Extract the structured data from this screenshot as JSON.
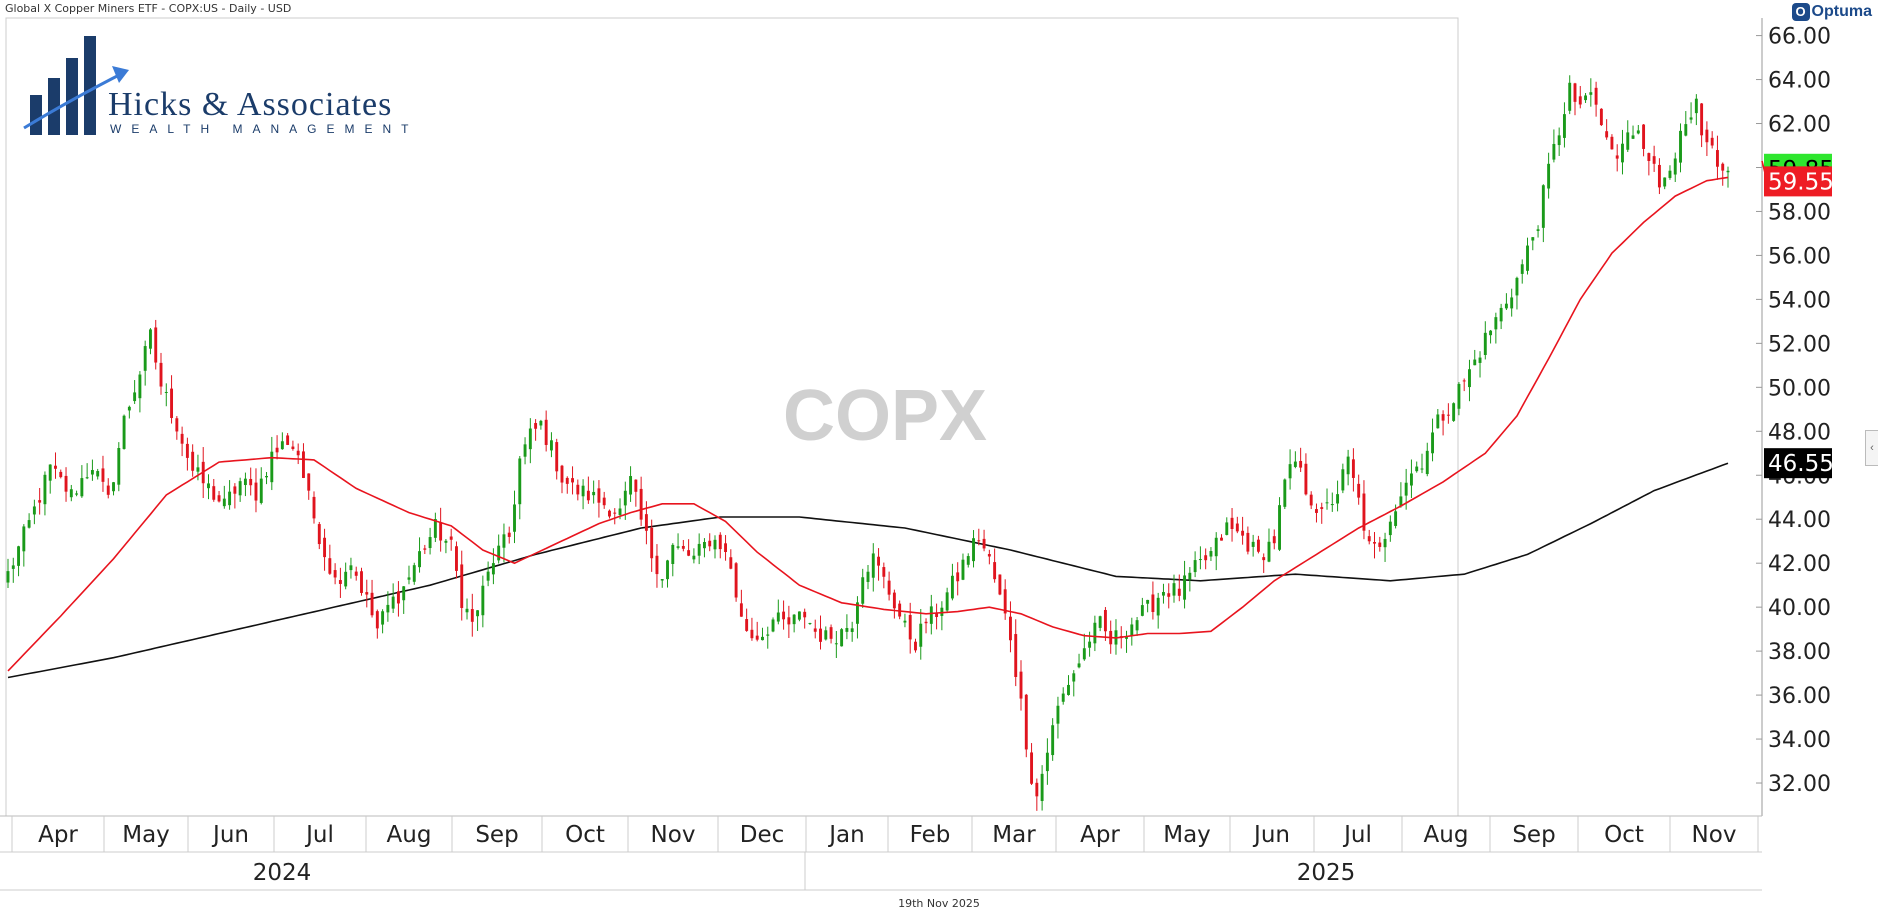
{
  "header": {
    "title": "Global X Copper Miners ETF - COPX:US - Daily - USD",
    "provider": "Optuma"
  },
  "logo": {
    "name": "Hicks & Associates",
    "tagline": "WEALTH MANAGEMENT"
  },
  "footer": {
    "date": "19th Nov 2025"
  },
  "colors": {
    "up": "#1a9a1a",
    "down": "#e0141e",
    "ma_short": "#e8141e",
    "ma_long": "#111111",
    "watermark": "#d0d0d0",
    "price_up_badge": "#2ee62e",
    "price_down_badge": "#ee1c24",
    "long_badge": "#000000",
    "logo_navy": "#1b3c6a"
  },
  "chart_data": {
    "type": "candlestick",
    "symbol": "COPX",
    "watermark": "COPX",
    "ylim": [
      30.5,
      66.8
    ],
    "yticks": [
      "66.00",
      "64.00",
      "62.00",
      "60.00",
      "58.00",
      "56.00",
      "54.00",
      "52.00",
      "50.00",
      "48.00",
      "46.00",
      "44.00",
      "42.00",
      "40.00",
      "38.00",
      "36.00",
      "34.00",
      "32.00"
    ],
    "months": [
      "Apr",
      "May",
      "Jun",
      "Jul",
      "Aug",
      "Sep",
      "Oct",
      "Nov",
      "Dec",
      "Jan",
      "Feb",
      "Mar",
      "Apr",
      "May",
      "Jun",
      "Jul",
      "Aug",
      "Sep",
      "Oct",
      "Nov"
    ],
    "years": [
      "2024",
      "2025"
    ],
    "price_labels": [
      {
        "text": "59.85",
        "value": 59.85,
        "color": "#2ee62e",
        "text_color": "#000000"
      },
      {
        "text": "59.55",
        "value": 59.55,
        "color": "#ee1c24",
        "text_color": "#ffffff"
      },
      {
        "text": "46.55",
        "value": 46.55,
        "color": "#000000",
        "text_color": "#ffffff"
      }
    ],
    "close_anchors": [
      [
        0,
        41.5
      ],
      [
        4,
        43.8
      ],
      [
        8,
        46.3
      ],
      [
        12,
        45.1
      ],
      [
        16,
        46.5
      ],
      [
        19,
        44.8
      ],
      [
        22,
        48.5
      ],
      [
        25,
        50.7
      ],
      [
        27,
        52.3
      ],
      [
        29,
        50.1
      ],
      [
        32,
        48.3
      ],
      [
        35,
        46.2
      ],
      [
        38,
        45.4
      ],
      [
        41,
        44.6
      ],
      [
        44,
        45.7
      ],
      [
        47,
        45.2
      ],
      [
        50,
        46.9
      ],
      [
        53,
        47.6
      ],
      [
        55,
        47.0
      ],
      [
        57,
        44.9
      ],
      [
        60,
        42.5
      ],
      [
        62,
        41.2
      ],
      [
        65,
        42.1
      ],
      [
        68,
        40.3
      ],
      [
        70,
        39.0
      ],
      [
        72,
        40.0
      ],
      [
        75,
        40.9
      ],
      [
        78,
        42.4
      ],
      [
        81,
        43.6
      ],
      [
        84,
        42.7
      ],
      [
        86,
        40.4
      ],
      [
        88,
        39.2
      ],
      [
        90,
        40.7
      ],
      [
        92,
        42.2
      ],
      [
        95,
        43.2
      ],
      [
        97,
        46.7
      ],
      [
        99,
        47.8
      ],
      [
        101,
        48.3
      ],
      [
        103,
        47.2
      ],
      [
        105,
        45.9
      ],
      [
        107,
        45.4
      ],
      [
        110,
        45.1
      ],
      [
        113,
        44.7
      ],
      [
        116,
        44.3
      ],
      [
        118,
        45.7
      ],
      [
        120,
        43.9
      ],
      [
        122,
        42.4
      ],
      [
        124,
        41.5
      ],
      [
        126,
        42.7
      ],
      [
        128,
        42.5
      ],
      [
        130,
        42.2
      ],
      [
        133,
        43.1
      ],
      [
        135,
        42.9
      ],
      [
        137,
        41.8
      ],
      [
        139,
        39.4
      ],
      [
        141,
        38.7
      ],
      [
        143,
        38.8
      ],
      [
        145,
        39.4
      ],
      [
        148,
        39.2
      ],
      [
        151,
        39.7
      ],
      [
        153,
        38.9
      ],
      [
        155,
        38.6
      ],
      [
        158,
        38.9
      ],
      [
        160,
        39.4
      ],
      [
        162,
        41.7
      ],
      [
        164,
        42.2
      ],
      [
        166,
        41.2
      ],
      [
        168,
        40.2
      ],
      [
        170,
        39.0
      ],
      [
        172,
        38.4
      ],
      [
        174,
        39.4
      ],
      [
        176,
        39.8
      ],
      [
        178,
        40.6
      ],
      [
        180,
        41.4
      ],
      [
        182,
        42.5
      ],
      [
        184,
        43.2
      ],
      [
        186,
        42.1
      ],
      [
        188,
        40.4
      ],
      [
        190,
        38.7
      ],
      [
        192,
        35.6
      ],
      [
        194,
        32.3
      ],
      [
        195,
        31.4
      ],
      [
        197,
        33.5
      ],
      [
        199,
        35.4
      ],
      [
        201,
        36.6
      ],
      [
        203,
        37.5
      ],
      [
        205,
        38.6
      ],
      [
        207,
        39.2
      ],
      [
        209,
        38.4
      ],
      [
        211,
        38.8
      ],
      [
        213,
        39.3
      ],
      [
        216,
        39.9
      ],
      [
        219,
        40.8
      ],
      [
        222,
        40.7
      ],
      [
        225,
        41.7
      ],
      [
        228,
        42.4
      ],
      [
        231,
        43.6
      ],
      [
        234,
        43.2
      ],
      [
        237,
        42.3
      ],
      [
        240,
        43.1
      ],
      [
        242,
        45.6
      ],
      [
        244,
        46.6
      ],
      [
        246,
        45.4
      ],
      [
        249,
        44.1
      ],
      [
        252,
        45.3
      ],
      [
        254,
        46.6
      ],
      [
        256,
        44.8
      ],
      [
        258,
        42.7
      ],
      [
        260,
        42.5
      ],
      [
        262,
        44.2
      ],
      [
        265,
        45.8
      ],
      [
        268,
        46.7
      ],
      [
        271,
        48.4
      ],
      [
        274,
        49.5
      ],
      [
        277,
        50.7
      ],
      [
        280,
        52.2
      ],
      [
        283,
        53.5
      ],
      [
        286,
        54.9
      ],
      [
        288,
        56.2
      ],
      [
        290,
        57.6
      ],
      [
        292,
        59.9
      ],
      [
        294,
        61.7
      ],
      [
        296,
        63.7
      ],
      [
        297,
        62.6
      ],
      [
        299,
        63.3
      ],
      [
        301,
        62.7
      ],
      [
        303,
        61.2
      ],
      [
        305,
        60.4
      ],
      [
        307,
        61.4
      ],
      [
        309,
        61.9
      ],
      [
        311,
        60.6
      ],
      [
        313,
        59.1
      ],
      [
        315,
        60.3
      ],
      [
        318,
        61.7
      ],
      [
        320,
        62.7
      ],
      [
        321,
        61.2
      ],
      [
        323,
        60.7
      ],
      [
        324,
        59.6
      ],
      [
        326,
        59.85
      ]
    ],
    "ma_short": {
      "name": "",
      "points": [
        [
          0,
          37.1
        ],
        [
          10,
          39.6
        ],
        [
          20,
          42.2
        ],
        [
          30,
          45.1
        ],
        [
          40,
          46.6
        ],
        [
          50,
          46.8
        ],
        [
          58,
          46.7
        ],
        [
          66,
          45.4
        ],
        [
          76,
          44.3
        ],
        [
          84,
          43.7
        ],
        [
          90,
          42.6
        ],
        [
          96,
          42.0
        ],
        [
          104,
          42.9
        ],
        [
          112,
          43.8
        ],
        [
          118,
          44.3
        ],
        [
          124,
          44.7
        ],
        [
          130,
          44.7
        ],
        [
          136,
          43.9
        ],
        [
          142,
          42.5
        ],
        [
          150,
          41.0
        ],
        [
          158,
          40.2
        ],
        [
          166,
          39.9
        ],
        [
          174,
          39.7
        ],
        [
          180,
          39.8
        ],
        [
          186,
          40.0
        ],
        [
          192,
          39.7
        ],
        [
          198,
          39.1
        ],
        [
          204,
          38.7
        ],
        [
          210,
          38.6
        ],
        [
          216,
          38.8
        ],
        [
          222,
          38.8
        ],
        [
          228,
          38.9
        ],
        [
          234,
          40.0
        ],
        [
          240,
          41.2
        ],
        [
          248,
          42.4
        ],
        [
          256,
          43.6
        ],
        [
          264,
          44.6
        ],
        [
          272,
          45.7
        ],
        [
          280,
          47.0
        ],
        [
          286,
          48.7
        ],
        [
          292,
          51.3
        ],
        [
          298,
          54.0
        ],
        [
          304,
          56.1
        ],
        [
          310,
          57.5
        ],
        [
          316,
          58.7
        ],
        [
          322,
          59.4
        ],
        [
          326,
          59.55
        ]
      ]
    },
    "ma_long": {
      "name": "",
      "points": [
        [
          0,
          36.8
        ],
        [
          20,
          37.7
        ],
        [
          40,
          38.8
        ],
        [
          60,
          39.9
        ],
        [
          80,
          41.0
        ],
        [
          100,
          42.4
        ],
        [
          120,
          43.6
        ],
        [
          135,
          44.1
        ],
        [
          150,
          44.1
        ],
        [
          170,
          43.6
        ],
        [
          190,
          42.6
        ],
        [
          210,
          41.4
        ],
        [
          226,
          41.2
        ],
        [
          244,
          41.5
        ],
        [
          262,
          41.2
        ],
        [
          276,
          41.5
        ],
        [
          288,
          42.4
        ],
        [
          300,
          43.8
        ],
        [
          312,
          45.3
        ],
        [
          326,
          46.55
        ]
      ]
    }
  }
}
